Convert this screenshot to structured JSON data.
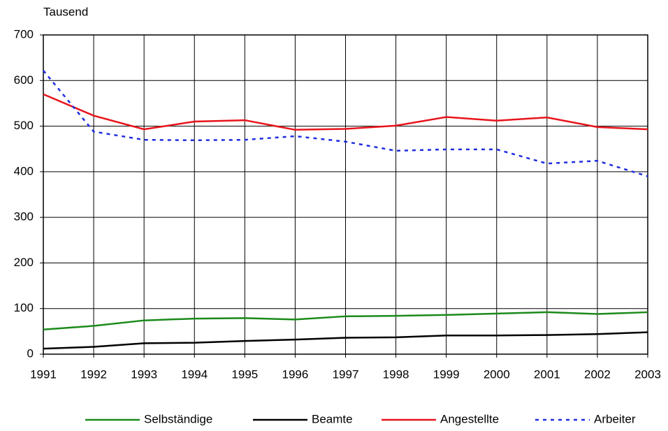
{
  "chart_data": {
    "type": "line",
    "y_label": "Tausend",
    "x": [
      1991,
      1992,
      1993,
      1994,
      1995,
      1996,
      1997,
      1998,
      1999,
      2000,
      2001,
      2002,
      2003
    ],
    "xlim": [
      1991,
      2003
    ],
    "xticks": [
      1991,
      1992,
      1993,
      1994,
      1995,
      1996,
      1997,
      1998,
      1999,
      2000,
      2001,
      2002,
      2003
    ],
    "ylim": [
      0,
      700
    ],
    "yticks": [
      0,
      100,
      200,
      300,
      400,
      500,
      600,
      700
    ],
    "grid": true,
    "legend": "bottom",
    "series": [
      {
        "name": "Selbständige",
        "color": "#1a8a1a",
        "linestyle": "solid",
        "values": [
          54,
          62,
          74,
          78,
          79,
          76,
          83,
          84,
          86,
          89,
          92,
          88,
          92
        ]
      },
      {
        "name": "Beamte",
        "color": "#000000",
        "linestyle": "solid",
        "values": [
          12,
          16,
          24,
          25,
          29,
          32,
          36,
          37,
          41,
          41,
          42,
          44,
          48
        ]
      },
      {
        "name": "Angestellte",
        "color": "#e8141b",
        "linestyle": "solid",
        "values": [
          570,
          523,
          493,
          510,
          513,
          492,
          494,
          501,
          520,
          512,
          519,
          498,
          493
        ]
      },
      {
        "name": "Arbeiter",
        "color": "#1f2ee0",
        "linestyle": "dotted",
        "values": [
          622,
          488,
          470,
          469,
          470,
          478,
          466,
          446,
          449,
          449,
          418,
          424,
          390
        ]
      }
    ]
  }
}
